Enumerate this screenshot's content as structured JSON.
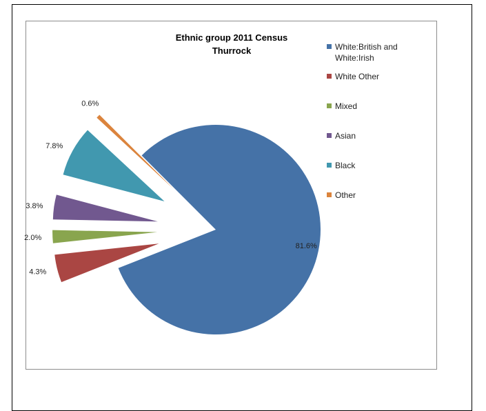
{
  "chart_data": {
    "type": "pie",
    "title": "Ethnic group 2011 Census",
    "subtitle": "Thurrock",
    "categories": [
      "White:British and White:Irish",
      "White Other",
      "Mixed",
      "Asian",
      "Black",
      "Other"
    ],
    "values": [
      81.6,
      4.3,
      2.0,
      3.8,
      7.8,
      0.6
    ],
    "value_labels": [
      "81.6%",
      "4.3%",
      "2.0%",
      "3.8%",
      "7.8%",
      "0.6%"
    ],
    "colors": [
      "#4572a7",
      "#aa4643",
      "#89a54e",
      "#71588f",
      "#4198af",
      "#db843d"
    ],
    "exploded": [
      false,
      true,
      true,
      true,
      true,
      true
    ],
    "legend_position": "right",
    "legend": [
      {
        "label_lines": [
          "White:British and",
          "White:Irish"
        ],
        "color": "#4572a7"
      },
      {
        "label_lines": [
          "White Other"
        ],
        "color": "#aa4643"
      },
      {
        "label_lines": [
          "Mixed"
        ],
        "color": "#89a54e"
      },
      {
        "label_lines": [
          "Asian"
        ],
        "color": "#71588f"
      },
      {
        "label_lines": [
          "Black"
        ],
        "color": "#4198af"
      },
      {
        "label_lines": [
          "Other"
        ],
        "color": "#db843d"
      }
    ]
  }
}
